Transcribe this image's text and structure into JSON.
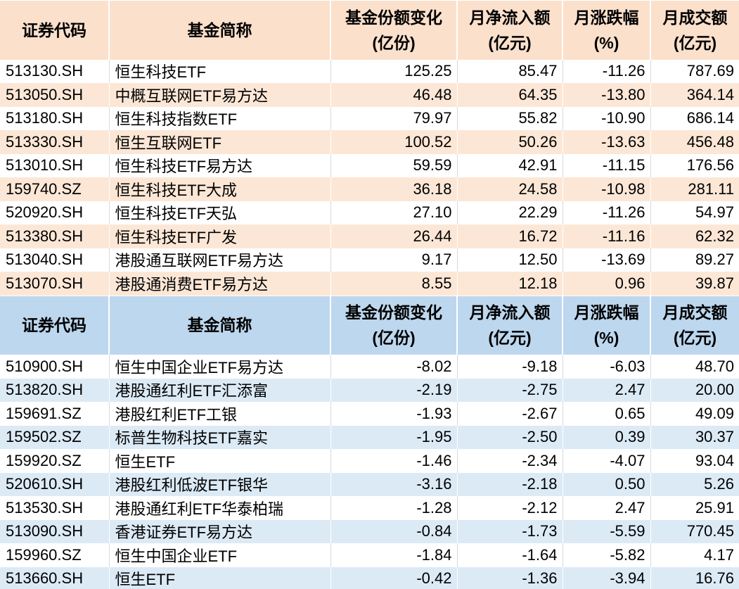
{
  "markers": {
    "fill_handle_color": "#3B4DA2"
  },
  "chart_data": [
    {
      "type": "table",
      "id": "fund-inflow-table",
      "colors": {
        "header_bg": "#FBE0CC",
        "alt_row_bg": "#FCE7D6",
        "row_bg": "#FFFFFF",
        "grid": "#D9D9D9",
        "text": "#000000"
      },
      "columns": [
        {
          "key": "code",
          "label": "证券代码",
          "sub": "",
          "align": "left"
        },
        {
          "key": "name",
          "label": "基金简称",
          "sub": "",
          "align": "left"
        },
        {
          "key": "share_change",
          "label": "基金份额变化",
          "sub": "(亿份)",
          "align": "right"
        },
        {
          "key": "net_inflow",
          "label": "月净流入额",
          "sub": "(亿元)",
          "align": "right"
        },
        {
          "key": "pct_change",
          "label": "月涨跌幅",
          "sub": "(%)",
          "align": "right"
        },
        {
          "key": "turnover",
          "label": "月成交额",
          "sub": "(亿元)",
          "align": "right"
        }
      ],
      "rows": [
        {
          "code": "513130.SH",
          "name": "恒生科技ETF",
          "share_change": "125.25",
          "net_inflow": "85.47",
          "pct_change": "-11.26",
          "turnover": "787.69"
        },
        {
          "code": "513050.SH",
          "name": "中概互联网ETF易方达",
          "share_change": "46.48",
          "net_inflow": "64.35",
          "pct_change": "-13.80",
          "turnover": "364.14"
        },
        {
          "code": "513180.SH",
          "name": "恒生科技指数ETF",
          "share_change": "79.97",
          "net_inflow": "55.82",
          "pct_change": "-10.90",
          "turnover": "686.14"
        },
        {
          "code": "513330.SH",
          "name": "恒生互联网ETF",
          "share_change": "100.52",
          "net_inflow": "50.26",
          "pct_change": "-13.63",
          "turnover": "456.48"
        },
        {
          "code": "513010.SH",
          "name": "恒生科技ETF易方达",
          "share_change": "59.59",
          "net_inflow": "42.91",
          "pct_change": "-11.15",
          "turnover": "176.56"
        },
        {
          "code": "159740.SZ",
          "name": "恒生科技ETF大成",
          "share_change": "36.18",
          "net_inflow": "24.58",
          "pct_change": "-10.98",
          "turnover": "281.11"
        },
        {
          "code": "520920.SH",
          "name": "恒生科技ETF天弘",
          "share_change": "27.10",
          "net_inflow": "22.29",
          "pct_change": "-11.26",
          "turnover": "54.97"
        },
        {
          "code": "513380.SH",
          "name": "恒生科技ETF广发",
          "share_change": "26.44",
          "net_inflow": "16.72",
          "pct_change": "-11.16",
          "turnover": "62.32"
        },
        {
          "code": "513040.SH",
          "name": "港股通互联网ETF易方达",
          "share_change": "9.17",
          "net_inflow": "12.50",
          "pct_change": "-13.69",
          "turnover": "89.27"
        },
        {
          "code": "513070.SH",
          "name": "港股通消费ETF易方达",
          "share_change": "8.55",
          "net_inflow": "12.18",
          "pct_change": "0.96",
          "turnover": "39.87"
        }
      ]
    },
    {
      "type": "table",
      "id": "fund-outflow-table",
      "colors": {
        "header_bg": "#BDD7EE",
        "alt_row_bg": "#DCEAF6",
        "row_bg": "#FFFFFF",
        "grid": "#D9D9D9",
        "text": "#000000"
      },
      "columns": [
        {
          "key": "code",
          "label": "证券代码",
          "sub": "",
          "align": "left"
        },
        {
          "key": "name",
          "label": "基金简称",
          "sub": "",
          "align": "left"
        },
        {
          "key": "share_change",
          "label": "基金份额变化",
          "sub": "(亿份)",
          "align": "right"
        },
        {
          "key": "net_inflow",
          "label": "月净流入额",
          "sub": "(亿元)",
          "align": "right"
        },
        {
          "key": "pct_change",
          "label": "月涨跌幅",
          "sub": "(%)",
          "align": "right"
        },
        {
          "key": "turnover",
          "label": "月成交额",
          "sub": "(亿元)",
          "align": "right"
        }
      ],
      "rows": [
        {
          "code": "510900.SH",
          "name": "恒生中国企业ETF易方达",
          "share_change": "-8.02",
          "net_inflow": "-9.18",
          "pct_change": "-6.03",
          "turnover": "48.70"
        },
        {
          "code": "513820.SH",
          "name": "港股通红利ETF汇添富",
          "share_change": "-2.19",
          "net_inflow": "-2.75",
          "pct_change": "2.47",
          "turnover": "20.00"
        },
        {
          "code": "159691.SZ",
          "name": "港股红利ETF工银",
          "share_change": "-1.93",
          "net_inflow": "-2.67",
          "pct_change": "0.65",
          "turnover": "49.09"
        },
        {
          "code": "159502.SZ",
          "name": "标普生物科技ETF嘉实",
          "share_change": "-1.95",
          "net_inflow": "-2.50",
          "pct_change": "0.39",
          "turnover": "30.37"
        },
        {
          "code": "159920.SZ",
          "name": "恒生ETF",
          "share_change": "-1.46",
          "net_inflow": "-2.34",
          "pct_change": "-4.07",
          "turnover": "93.04"
        },
        {
          "code": "520610.SH",
          "name": "港股红利低波ETF银华",
          "share_change": "-3.16",
          "net_inflow": "-2.18",
          "pct_change": "0.50",
          "turnover": "5.26"
        },
        {
          "code": "513530.SH",
          "name": "港股通红利ETF华泰柏瑞",
          "share_change": "-1.28",
          "net_inflow": "-2.12",
          "pct_change": "2.47",
          "turnover": "25.91"
        },
        {
          "code": "513090.SH",
          "name": "香港证券ETF易方达",
          "share_change": "-0.84",
          "net_inflow": "-1.73",
          "pct_change": "-5.59",
          "turnover": "770.45"
        },
        {
          "code": "159960.SZ",
          "name": "恒生中国企业ETF",
          "share_change": "-1.84",
          "net_inflow": "-1.64",
          "pct_change": "-5.82",
          "turnover": "4.17"
        },
        {
          "code": "513660.SH",
          "name": "恒生ETF",
          "share_change": "-0.42",
          "net_inflow": "-1.36",
          "pct_change": "-3.94",
          "turnover": "16.76"
        }
      ]
    }
  ]
}
